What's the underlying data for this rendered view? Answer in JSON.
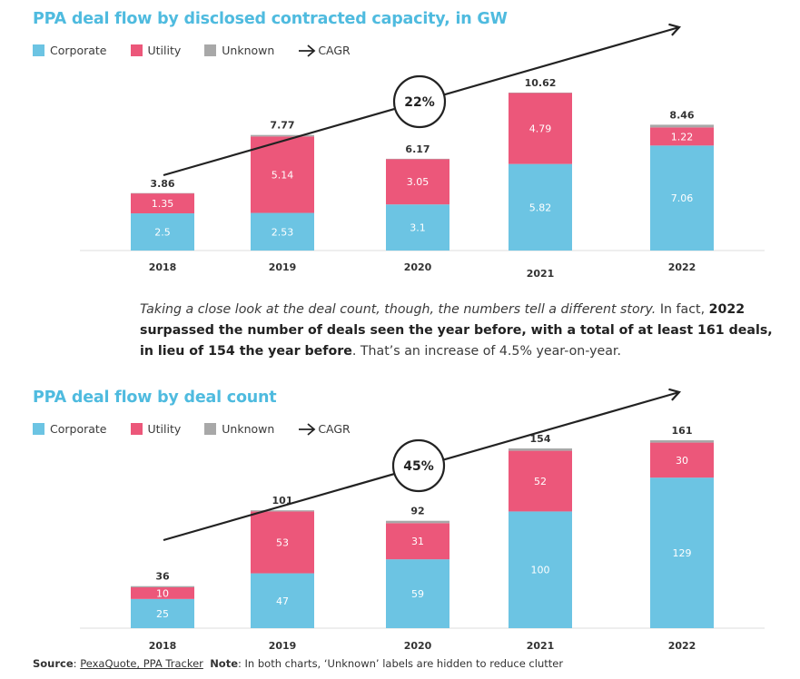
{
  "colors": {
    "corporate": "#6cc4e3",
    "utility": "#ec577a",
    "unknown": "#a8a8a8",
    "title": "#4fbbdf"
  },
  "legend": {
    "corporate": "Corporate",
    "utility": "Utility",
    "unknown": "Unknown",
    "cagr": "CAGR"
  },
  "paragraph": {
    "italic": "Taking a close look at the deal count, though, the numbers tell a different story.",
    "plain1": " In fact, ",
    "bold": "2022 surpassed the number of deals seen the year before, with a total of at least 161 deals, in lieu of 154 the year before",
    "plain2": ". That’s an increase of 4.5% year-on-year."
  },
  "source": {
    "label": "Source",
    "sep": ": ",
    "link": "PexaQuote, PPA Tracker",
    "note_label": "Note",
    "note_text": ": In both charts, ‘Unknown’ labels are hidden to reduce clutter"
  },
  "chart_data": [
    {
      "type": "bar",
      "stacked": true,
      "title": "PPA deal flow by disclosed contracted capacity, in GW",
      "categories": [
        "2018",
        "2019",
        "2020",
        "2021",
        "2022"
      ],
      "series": [
        {
          "name": "Corporate",
          "values": [
            2.5,
            2.53,
            3.1,
            5.82,
            7.06
          ],
          "labels": [
            "2.5",
            "2.53",
            "3.1",
            "5.82",
            "7.06"
          ]
        },
        {
          "name": "Utility",
          "values": [
            1.35,
            5.14,
            3.05,
            4.79,
            1.22
          ],
          "labels": [
            "1.35",
            "5.14",
            "3.05",
            "4.79",
            "1.22"
          ]
        },
        {
          "name": "Unknown",
          "values": [
            0.01,
            0.1,
            0.02,
            0.01,
            0.18
          ]
        }
      ],
      "totals": [
        "3.86",
        "7.77",
        "6.17",
        "10.62",
        "8.46"
      ],
      "total_values": [
        3.86,
        7.77,
        6.17,
        10.62,
        8.46
      ],
      "cagr": "22%",
      "ylim": [
        0,
        10.62
      ]
    },
    {
      "type": "bar",
      "stacked": true,
      "title": "PPA deal flow by deal count",
      "categories": [
        "2018",
        "2019",
        "2020",
        "2021",
        "2022"
      ],
      "series": [
        {
          "name": "Corporate",
          "values": [
            25,
            47,
            59,
            100,
            129
          ],
          "labels": [
            "25",
            "47",
            "59",
            "100",
            "129"
          ]
        },
        {
          "name": "Utility",
          "values": [
            10,
            53,
            31,
            52,
            30
          ],
          "labels": [
            "10",
            "53",
            "31",
            "52",
            "30"
          ]
        },
        {
          "name": "Unknown",
          "values": [
            1,
            1,
            2,
            2,
            2
          ]
        }
      ],
      "totals": [
        "36",
        "101",
        "92",
        "154",
        "161"
      ],
      "total_values": [
        36,
        101,
        92,
        154,
        161
      ],
      "cagr": "45%",
      "ylim": [
        0,
        161
      ]
    }
  ]
}
